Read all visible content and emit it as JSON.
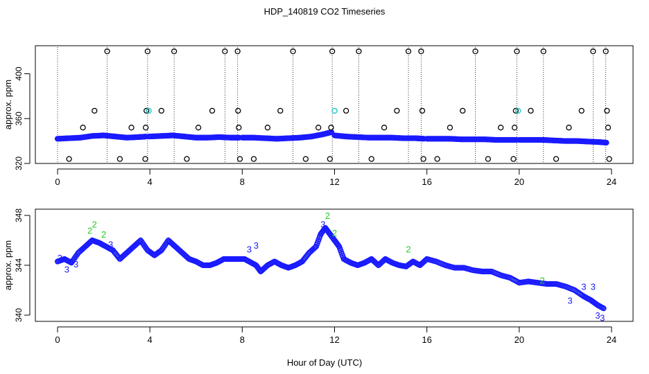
{
  "page_title": "HDP_140819  CO2 Timeseries",
  "xlabel": "Hour of Day (UTC)",
  "chart_data": [
    {
      "type": "scatter",
      "panel": "top",
      "ylabel": "approx. ppm",
      "xlim": [
        0,
        24
      ],
      "ylim": [
        320,
        425
      ],
      "x_ticks": [
        0,
        4,
        8,
        12,
        16,
        20,
        24
      ],
      "y_ticks": [
        320,
        360,
        400
      ],
      "grid": false,
      "colors": {
        "baseline": "#1a1aff",
        "outlier": "#000000",
        "highlight": "#33cccc",
        "drop": "#000000"
      },
      "baseline_segments": [
        {
          "x": [
            0.0,
            0.5,
            1.0,
            1.5,
            2.0,
            2.5,
            3.0,
            3.5,
            3.85
          ],
          "y": [
            342,
            342.5,
            343,
            344.5,
            345,
            344,
            343,
            343.5,
            344
          ]
        },
        {
          "x": [
            3.95,
            4.5,
            5.0,
            5.5,
            6.0,
            6.5,
            7.0,
            7.5,
            7.9
          ],
          "y": [
            344,
            344.5,
            345,
            344,
            343,
            343,
            343.5,
            343,
            343
          ]
        },
        {
          "x": [
            8.0,
            8.5,
            9.0,
            9.5,
            10.0,
            10.5,
            11.0,
            11.5,
            11.9
          ],
          "y": [
            343,
            343,
            342.5,
            342,
            342.5,
            343,
            344,
            346,
            348
          ]
        },
        {
          "x": [
            12.0,
            12.5,
            13.0,
            13.5,
            14.0,
            14.5,
            15.0,
            15.5,
            15.9
          ],
          "y": [
            345,
            344,
            343.5,
            343,
            343,
            343,
            342.5,
            342.5,
            342
          ]
        },
        {
          "x": [
            16.0,
            16.5,
            17.0,
            17.5,
            18.0,
            18.5,
            19.0,
            19.5,
            19.9
          ],
          "y": [
            342,
            342,
            342,
            341.5,
            341.5,
            341.5,
            341,
            341,
            341
          ]
        },
        {
          "x": [
            20.0,
            20.5,
            21.0,
            21.5,
            22.0,
            22.5,
            23.0,
            23.5,
            23.8
          ],
          "y": [
            341,
            341,
            341,
            340.5,
            340,
            340,
            339.5,
            339,
            338.5
          ]
        }
      ],
      "outliers": [
        {
          "x": 0.5,
          "y": 324
        },
        {
          "x": 1.1,
          "y": 352
        },
        {
          "x": 1.6,
          "y": 367
        },
        {
          "x": 2.15,
          "y": 420
        },
        {
          "x": 2.7,
          "y": 324
        },
        {
          "x": 3.2,
          "y": 352
        },
        {
          "x": 3.8,
          "y": 324
        },
        {
          "x": 3.82,
          "y": 352
        },
        {
          "x": 3.85,
          "y": 367
        },
        {
          "x": 3.9,
          "y": 420
        },
        {
          "x": 4.5,
          "y": 367
        },
        {
          "x": 5.05,
          "y": 420
        },
        {
          "x": 5.6,
          "y": 324
        },
        {
          "x": 6.1,
          "y": 352
        },
        {
          "x": 6.7,
          "y": 367
        },
        {
          "x": 7.25,
          "y": 420
        },
        {
          "x": 7.8,
          "y": 420
        },
        {
          "x": 7.82,
          "y": 367
        },
        {
          "x": 7.85,
          "y": 352
        },
        {
          "x": 7.9,
          "y": 324
        },
        {
          "x": 8.5,
          "y": 324
        },
        {
          "x": 9.1,
          "y": 352
        },
        {
          "x": 9.65,
          "y": 367
        },
        {
          "x": 10.2,
          "y": 420
        },
        {
          "x": 10.75,
          "y": 324
        },
        {
          "x": 11.3,
          "y": 352
        },
        {
          "x": 11.8,
          "y": 324
        },
        {
          "x": 11.85,
          "y": 352
        },
        {
          "x": 11.9,
          "y": 420
        },
        {
          "x": 12.5,
          "y": 367
        },
        {
          "x": 13.05,
          "y": 420
        },
        {
          "x": 13.6,
          "y": 324
        },
        {
          "x": 14.15,
          "y": 352
        },
        {
          "x": 14.7,
          "y": 367
        },
        {
          "x": 15.2,
          "y": 420
        },
        {
          "x": 15.75,
          "y": 420
        },
        {
          "x": 15.8,
          "y": 367
        },
        {
          "x": 15.85,
          "y": 324
        },
        {
          "x": 16.45,
          "y": 324
        },
        {
          "x": 17.0,
          "y": 352
        },
        {
          "x": 17.55,
          "y": 367
        },
        {
          "x": 18.1,
          "y": 420
        },
        {
          "x": 18.65,
          "y": 324
        },
        {
          "x": 19.2,
          "y": 352
        },
        {
          "x": 19.75,
          "y": 324
        },
        {
          "x": 19.8,
          "y": 352
        },
        {
          "x": 19.85,
          "y": 367
        },
        {
          "x": 19.9,
          "y": 420
        },
        {
          "x": 20.5,
          "y": 367
        },
        {
          "x": 21.05,
          "y": 420
        },
        {
          "x": 21.6,
          "y": 324
        },
        {
          "x": 22.15,
          "y": 352
        },
        {
          "x": 22.7,
          "y": 367
        },
        {
          "x": 23.2,
          "y": 420
        },
        {
          "x": 23.75,
          "y": 420
        },
        {
          "x": 23.8,
          "y": 367
        },
        {
          "x": 23.85,
          "y": 352
        },
        {
          "x": 23.9,
          "y": 324
        }
      ],
      "highlights": [
        {
          "x": 3.95,
          "y": 367
        },
        {
          "x": 12.0,
          "y": 367
        },
        {
          "x": 19.95,
          "y": 367
        }
      ],
      "drop_lines_x": [
        0.0,
        2.15,
        3.9,
        5.05,
        7.25,
        7.8,
        10.2,
        11.9,
        13.05,
        15.2,
        15.75,
        18.1,
        19.9,
        21.05,
        23.2,
        23.75
      ]
    },
    {
      "type": "scatter",
      "panel": "bottom",
      "ylabel": "approx. ppm",
      "xlim": [
        0,
        24
      ],
      "ylim": [
        339.5,
        348.5
      ],
      "x_ticks": [
        0,
        4,
        8,
        12,
        16,
        20,
        24
      ],
      "y_ticks": [
        340,
        344,
        348
      ],
      "grid": false,
      "colors": {
        "points": "#1a1aff",
        "label_2": "#22cc22",
        "label_3": "#1a1aff"
      },
      "series": [
        {
          "x": [
            0.0,
            0.3,
            0.6,
            0.9,
            1.2,
            1.5,
            1.8,
            2.1,
            2.4,
            2.7,
            3.0,
            3.3,
            3.6,
            3.9,
            4.2,
            4.5,
            4.8,
            5.1,
            5.4,
            5.7,
            6.0,
            6.3,
            6.6,
            6.9,
            7.2,
            7.5,
            7.8,
            8.1,
            8.4,
            8.6,
            8.8,
            9.1,
            9.4,
            9.7,
            10.0,
            10.3,
            10.6,
            10.9,
            11.2,
            11.4,
            11.6,
            11.8,
            12.0,
            12.2,
            12.4,
            12.7,
            13.0,
            13.3,
            13.6,
            13.9,
            14.2,
            14.5,
            14.8,
            15.1,
            15.4,
            15.7,
            16.0,
            16.4,
            16.8,
            17.2,
            17.6,
            18.0,
            18.4,
            18.8,
            19.2,
            19.6,
            20.0,
            20.4,
            20.8,
            21.2,
            21.6,
            22.0,
            22.4,
            22.8,
            23.1,
            23.4,
            23.7
          ],
          "y": [
            344.3,
            344.5,
            344.2,
            345.0,
            345.5,
            346.0,
            345.8,
            345.5,
            345.2,
            344.5,
            345.0,
            345.5,
            346.0,
            345.2,
            344.8,
            345.2,
            346.0,
            345.5,
            345.0,
            344.5,
            344.3,
            344.0,
            344.0,
            344.2,
            344.5,
            344.5,
            344.5,
            344.5,
            344.2,
            344.0,
            343.5,
            344.0,
            344.3,
            344.0,
            343.8,
            344.0,
            344.3,
            345.0,
            345.5,
            346.5,
            347.0,
            346.5,
            346.0,
            345.5,
            344.5,
            344.2,
            344.0,
            344.2,
            344.5,
            344.0,
            344.5,
            344.2,
            344.0,
            343.9,
            344.3,
            344.0,
            344.5,
            344.3,
            344.0,
            343.8,
            343.8,
            343.6,
            343.5,
            343.5,
            343.2,
            343.0,
            342.6,
            342.7,
            342.6,
            342.5,
            342.5,
            342.3,
            342.0,
            341.5,
            341.2,
            340.8,
            340.5
          ]
        }
      ],
      "label_marks": [
        {
          "x": 0.1,
          "y": 344.6,
          "label": "3"
        },
        {
          "x": 0.4,
          "y": 343.7,
          "label": "3"
        },
        {
          "x": 0.8,
          "y": 344.1,
          "label": "3"
        },
        {
          "x": 1.4,
          "y": 346.8,
          "label": "2"
        },
        {
          "x": 1.6,
          "y": 347.3,
          "label": "2"
        },
        {
          "x": 2.0,
          "y": 346.5,
          "label": "2"
        },
        {
          "x": 2.3,
          "y": 345.7,
          "label": "3"
        },
        {
          "x": 8.3,
          "y": 345.3,
          "label": "3"
        },
        {
          "x": 8.6,
          "y": 345.6,
          "label": "3"
        },
        {
          "x": 11.5,
          "y": 347.3,
          "label": "3"
        },
        {
          "x": 11.7,
          "y": 348.0,
          "label": "2"
        },
        {
          "x": 12.0,
          "y": 346.6,
          "label": "2"
        },
        {
          "x": 15.2,
          "y": 345.3,
          "label": "2"
        },
        {
          "x": 21.0,
          "y": 342.8,
          "label": "2"
        },
        {
          "x": 22.2,
          "y": 341.2,
          "label": "3"
        },
        {
          "x": 22.8,
          "y": 342.3,
          "label": "3"
        },
        {
          "x": 23.2,
          "y": 342.3,
          "label": "3"
        },
        {
          "x": 23.4,
          "y": 340.0,
          "label": "3"
        },
        {
          "x": 23.6,
          "y": 339.8,
          "label": "3"
        }
      ]
    }
  ]
}
